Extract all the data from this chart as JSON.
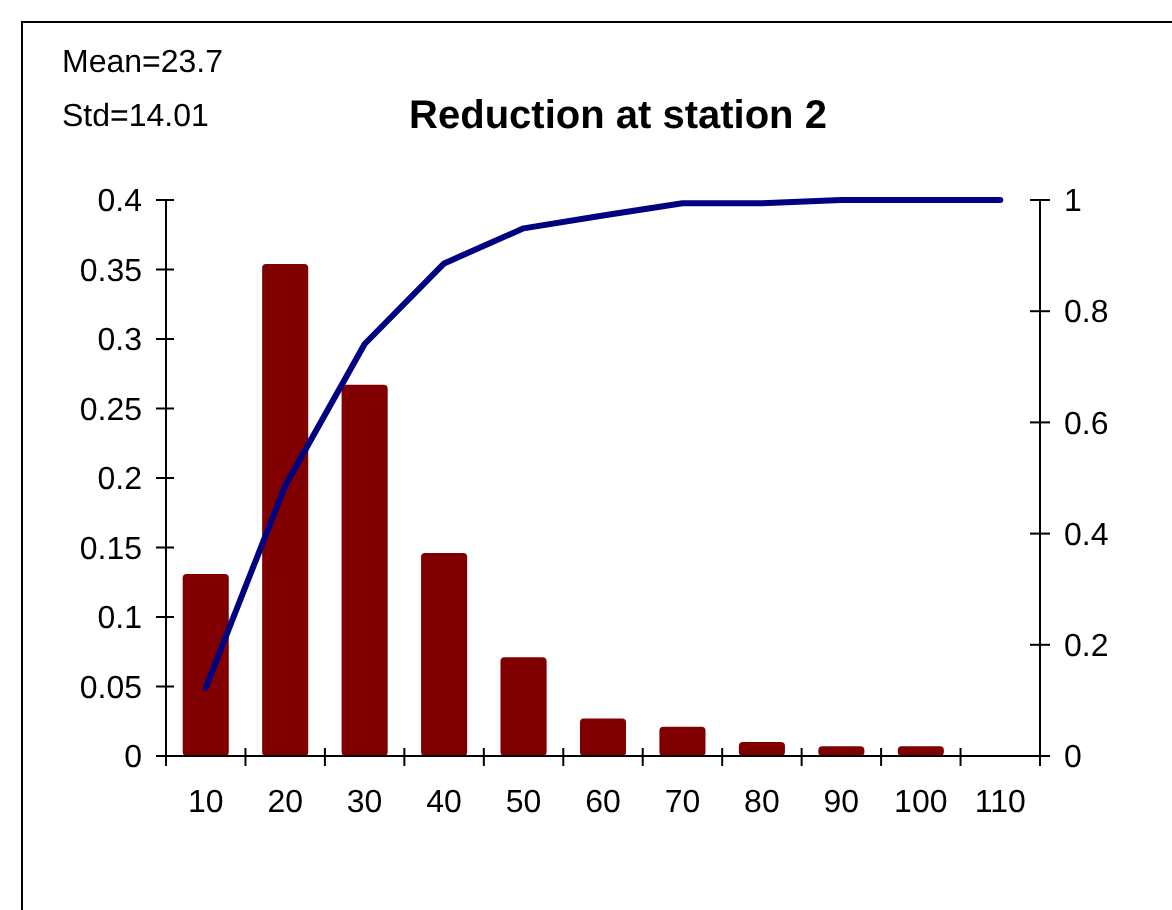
{
  "chart_data": {
    "type": "bar",
    "title": "Reduction at station 2",
    "annotations": [
      "Mean=23.7",
      "Std=14.01"
    ],
    "categories": [
      "10",
      "20",
      "30",
      "40",
      "50",
      "60",
      "70",
      "80",
      "90",
      "100",
      "110"
    ],
    "series": [
      {
        "color": "#800000",
        "values": [
          0.131,
          0.354,
          0.267,
          0.146,
          0.071,
          0.027,
          0.021,
          0.01,
          0.007,
          0.007,
          0
        ]
      },
      {
        "type": "line",
        "axis": "y2",
        "color": "#000080",
        "values": [
          0.123,
          0.486,
          0.741,
          0.886,
          0.949,
          0.972,
          0.994,
          0.994,
          1,
          1,
          1
        ]
      }
    ],
    "ylim": [
      0,
      0.4
    ],
    "yticks": [
      0,
      0.05,
      0.1,
      0.15,
      0.2,
      0.25,
      0.3,
      0.35,
      0.4
    ],
    "y2lim": [
      0,
      1
    ],
    "y2ticks": [
      0,
      0.2,
      0.4,
      0.6,
      0.8,
      1
    ],
    "grid": false
  }
}
